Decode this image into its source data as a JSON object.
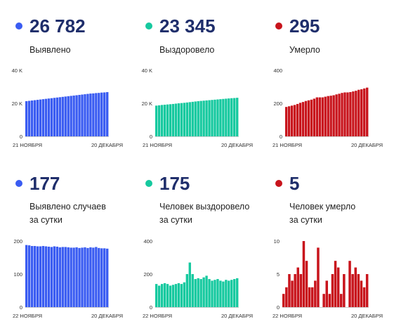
{
  "blocks": [
    {
      "number": "26 782",
      "caption_lines": [
        "Выявлено"
      ],
      "color": "#3a5cf2"
    },
    {
      "number": "23 345",
      "caption_lines": [
        "Выздоровело"
      ],
      "color": "#16c99f"
    },
    {
      "number": "295",
      "caption_lines": [
        "Умерло"
      ],
      "color": "#c8141c"
    },
    {
      "number": "177",
      "caption_lines": [
        "Выявлено случаев",
        "за сутки"
      ],
      "color": "#3a5cf2"
    },
    {
      "number": "175",
      "caption_lines": [
        "Человек выздоровело",
        "за сутки"
      ],
      "color": "#16c99f"
    },
    {
      "number": "5",
      "caption_lines": [
        "Человек умерло",
        "за сутки"
      ],
      "color": "#c8141c"
    }
  ],
  "chart_data": [
    {
      "type": "bar",
      "color": "#3a5cf2",
      "ylim": [
        0,
        40000
      ],
      "ytick_labels": [
        "0",
        "20 K",
        "40 K"
      ],
      "ytick_values": [
        0,
        20000,
        40000
      ],
      "xtick_labels": [
        "21 НОЯБРЯ",
        "20 ДЕКАБРЯ"
      ],
      "values": [
        21300,
        21500,
        21700,
        21900,
        22100,
        22300,
        22500,
        22700,
        22900,
        23100,
        23300,
        23500,
        23700,
        23900,
        24100,
        24300,
        24500,
        24700,
        24900,
        25100,
        25300,
        25500,
        25700,
        25900,
        26000,
        26200,
        26300,
        26500,
        26600,
        26782
      ]
    },
    {
      "type": "bar",
      "color": "#16c99f",
      "ylim": [
        0,
        40000
      ],
      "ytick_labels": [
        "0",
        "20 K",
        "40 K"
      ],
      "ytick_values": [
        0,
        20000,
        40000
      ],
      "xtick_labels": [
        "21 НОЯБРЯ",
        "20 ДЕКАБРЯ"
      ],
      "values": [
        18600,
        18800,
        19000,
        19150,
        19300,
        19450,
        19600,
        19800,
        20000,
        20150,
        20300,
        20500,
        20700,
        20900,
        21100,
        21300,
        21450,
        21600,
        21750,
        21900,
        22050,
        22200,
        22350,
        22500,
        22650,
        22800,
        22950,
        23100,
        23200,
        23345
      ]
    },
    {
      "type": "bar",
      "color": "#c8141c",
      "ylim": [
        0,
        400
      ],
      "ytick_labels": [
        "0",
        "200",
        "400"
      ],
      "ytick_values": [
        0,
        200,
        400
      ],
      "xtick_labels": [
        "21 НОЯБРЯ",
        "20 ДЕКАБРЯ"
      ],
      "values": [
        178,
        182,
        186,
        190,
        196,
        203,
        208,
        214,
        218,
        222,
        228,
        236,
        236,
        236,
        240,
        244,
        246,
        249,
        254,
        258,
        263,
        266,
        266,
        268,
        272,
        276,
        282,
        285,
        290,
        295
      ]
    },
    {
      "type": "bar",
      "color": "#3a5cf2",
      "ylim": [
        0,
        200
      ],
      "ytick_labels": [
        "0",
        "100",
        "200"
      ],
      "ytick_values": [
        0,
        100,
        200
      ],
      "xtick_labels": [
        "22 НОЯБРЯ",
        "20 ДЕКАБРЯ"
      ],
      "values": [
        188,
        187,
        185,
        185,
        184,
        184,
        185,
        184,
        183,
        182,
        184,
        183,
        181,
        182,
        182,
        181,
        180,
        180,
        181,
        179,
        180,
        181,
        179,
        181,
        180,
        182,
        179,
        178,
        178,
        177
      ]
    },
    {
      "type": "bar",
      "color": "#16c99f",
      "ylim": [
        0,
        400
      ],
      "ytick_labels": [
        "0",
        "200",
        "400"
      ],
      "ytick_values": [
        0,
        200,
        400
      ],
      "xtick_labels": [
        "22 НОЯБРЯ",
        "20 ДЕКАБРЯ"
      ],
      "values": [
        140,
        130,
        140,
        145,
        140,
        130,
        135,
        140,
        145,
        140,
        150,
        200,
        270,
        200,
        170,
        175,
        170,
        180,
        190,
        170,
        160,
        165,
        170,
        160,
        155,
        165,
        160,
        165,
        170,
        175
      ]
    },
    {
      "type": "bar",
      "color": "#c8141c",
      "ylim": [
        0,
        10
      ],
      "ytick_labels": [
        "0",
        "5",
        "10"
      ],
      "ytick_values": [
        0,
        5,
        10
      ],
      "xtick_labels": [
        "22 НОЯБРЯ",
        "20 ДЕКАБРЯ"
      ],
      "values": [
        2,
        3,
        5,
        4,
        5,
        6,
        5,
        10,
        7,
        3,
        3,
        4,
        9,
        0,
        2,
        4,
        2,
        5,
        7,
        6,
        2,
        5,
        0,
        7,
        5,
        6,
        5,
        4,
        3,
        5
      ]
    }
  ]
}
